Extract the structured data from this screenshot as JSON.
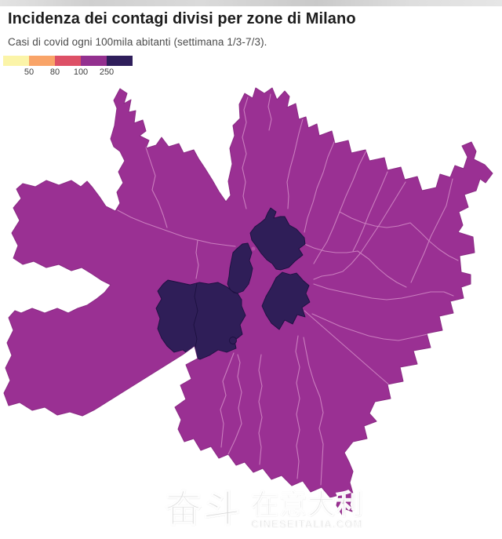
{
  "page": {
    "title": "Incidenza dei contagi divisi per zone di Milano",
    "subtitle": "Casi di covid ogni 100mila abitanti (settimana 1/3-7/3)."
  },
  "legend": {
    "tick_labels": [
      "50",
      "80",
      "100",
      "250"
    ],
    "bin_colors": [
      "#fbf4a8",
      "#f9a468",
      "#dd5066",
      "#93308f",
      "#2f1e5b"
    ]
  },
  "map": {
    "base_fill": "#9a3093",
    "zone_border_color": "#d188c5",
    "outer_edge_color": "#8b2b85",
    "high_incidence_fill": "#2f1e58",
    "high_incidence_edge": "#1c1040",
    "high_incidence_zone_count": 5,
    "small_dot_color": "#b44da6"
  },
  "watermark": {
    "left_text": "奋斗",
    "right_text": "在意大利",
    "site": "CINESEITALIA.COM"
  },
  "chart_data": {
    "type": "heatmap",
    "subtype": "choropleth_map",
    "title": "Incidenza dei contagi divisi per zone di Milano",
    "subtitle": "Casi di covid ogni 100mila abitanti (settimana 1/3-7/3).",
    "geography": "Zone (NIL) del comune di Milano",
    "unit": "casi di covid ogni 100mila abitanti",
    "week": "1/3-7/3",
    "scale": {
      "type": "threshold",
      "thresholds": [
        50,
        80,
        100,
        250
      ],
      "bins": [
        "<50",
        "50-80",
        "80-100",
        "100-250",
        ">250"
      ],
      "colors": [
        "#fbf4a8",
        "#f9a468",
        "#dd5066",
        "#93308f",
        "#2f1e5b"
      ],
      "legend_position": "top-left"
    },
    "observations": [
      {
        "zones": "maggior parte delle zone periferiche e semicentrali",
        "bin": "100-250",
        "color": "#93308f"
      },
      {
        "zones": "cluster di 5 zone centrali (centro e centro-nord della città)",
        "bin": ">250",
        "color": "#2f1e5b"
      }
    ]
  }
}
